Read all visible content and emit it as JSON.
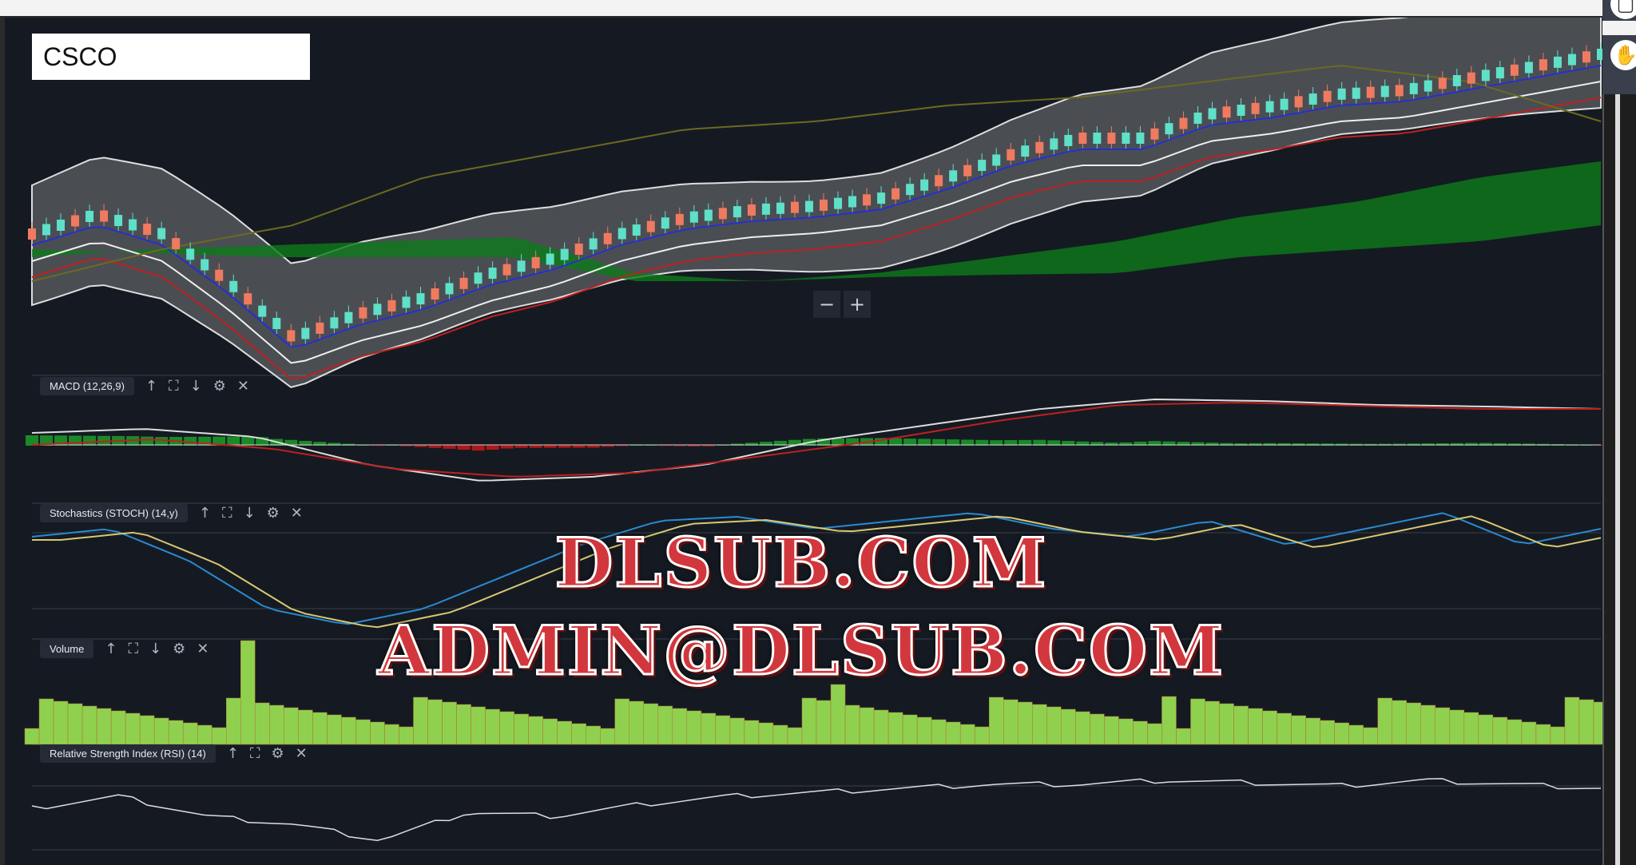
{
  "chart": {
    "symbol": "CSCO"
  },
  "zoom_controls": {
    "minus": "−",
    "plus": "+"
  },
  "panes": [
    {
      "label": "MACD (12,26,9)",
      "icons": [
        "arrow-up",
        "fullscreen",
        "arrow-down",
        "gear",
        "close"
      ]
    },
    {
      "label": "Stochastics (STOCH) (14,y)",
      "icons": [
        "arrow-up",
        "fullscreen",
        "arrow-down",
        "gear",
        "close"
      ]
    },
    {
      "label": "Volume",
      "icons": [
        "arrow-up",
        "fullscreen",
        "arrow-down",
        "gear",
        "close"
      ]
    },
    {
      "label": "Relative Strength Index (RSI) (14)",
      "icons": [
        "arrow-up",
        "fullscreen",
        "gear",
        "close"
      ]
    }
  ],
  "icon_glyphs": {
    "up": "↑",
    "fs": "⛶",
    "down": "↓",
    "gear": "⚙",
    "close": "✕",
    "collapse": "›"
  },
  "watermark": {
    "line1": "DLSUB.COM",
    "line2": "ADMIN@DLSUB.COM"
  },
  "colors": {
    "background": "#151a22",
    "up_candle": "#5fe0c8",
    "down_candle": "#f07a60",
    "volume": "#8fd14f",
    "cloud_bull": "#0d7a1a",
    "cloud_bear": "#7a1515"
  }
}
